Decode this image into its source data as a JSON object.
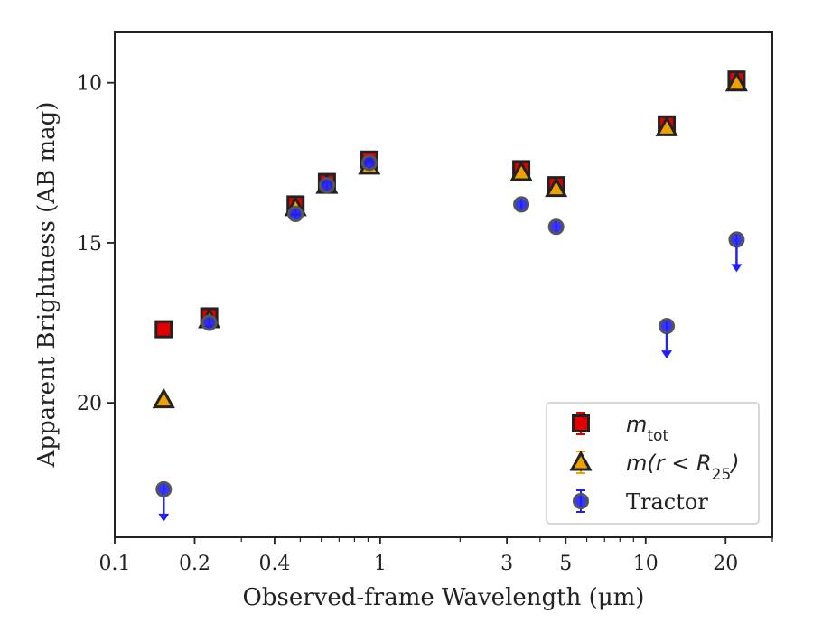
{
  "chart_data": {
    "type": "scatter",
    "xlabel": "Observed-frame Wavelength (μm)",
    "ylabel": "Apparent Brightness (AB mag)",
    "x_scale": "log",
    "xlim": [
      0.1,
      30
    ],
    "ylim": [
      24.2,
      8.4
    ],
    "y_inverted": true,
    "x_ticks": [
      0.1,
      0.2,
      0.4,
      1,
      3,
      5,
      10,
      20
    ],
    "x_tick_labels": [
      "0.1",
      "0.2",
      "0.4",
      "1",
      "3",
      "5",
      "10",
      "20"
    ],
    "y_ticks": [
      10,
      15,
      20
    ],
    "y_tick_labels": [
      "10",
      "15",
      "20"
    ],
    "legend_position": "lower right",
    "series": [
      {
        "key": "mtot",
        "legend_label": "m",
        "legend_sub": "tot",
        "marker": "square",
        "color": "#e00000",
        "x": [
          0.153,
          0.227,
          0.48,
          0.63,
          0.91,
          3.4,
          4.6,
          12.0,
          22.0
        ],
        "y": [
          17.7,
          17.3,
          13.8,
          13.1,
          12.4,
          12.7,
          13.2,
          11.3,
          9.9
        ]
      },
      {
        "key": "mr25",
        "legend_label": "m(r < R",
        "legend_sub": "25",
        "legend_close": ")",
        "marker": "triangle",
        "color": "#f0a000",
        "x": [
          0.153,
          0.227,
          0.48,
          0.63,
          0.91,
          3.4,
          4.6,
          12.0,
          22.0
        ],
        "y": [
          19.9,
          17.4,
          13.9,
          13.2,
          12.6,
          12.8,
          13.3,
          11.4,
          10.0
        ]
      },
      {
        "key": "tractor",
        "legend_label": "Tractor",
        "marker": "circle",
        "color": "#2020ff",
        "x": [
          0.153,
          0.227,
          0.48,
          0.63,
          0.91,
          3.4,
          4.6,
          12.0,
          22.0
        ],
        "y": [
          22.7,
          17.5,
          14.1,
          13.2,
          12.5,
          13.8,
          14.5,
          17.6,
          14.9
        ],
        "upper_limit": [
          true,
          false,
          false,
          false,
          false,
          false,
          false,
          true,
          true
        ]
      }
    ]
  }
}
